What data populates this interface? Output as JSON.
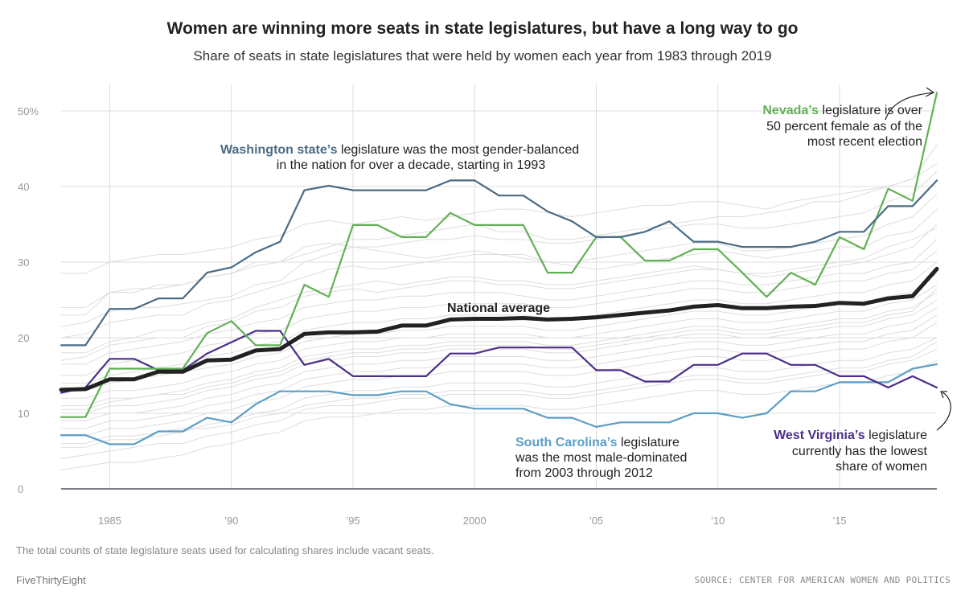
{
  "title": "Women are winning more seats in state legislatures, but have a long way to go",
  "subtitle": "Share of seats in state legislatures that were held by women each year from 1983 through 2019",
  "footnote": "The total counts of state legislature seats used for calculating shares include vacant seats.",
  "brand": "FiveThirtyEight",
  "source": "SOURCE: CENTER FOR AMERICAN WOMEN AND POLITICS",
  "colors": {
    "national": "#222222",
    "washington": "#4a6b85",
    "nevada": "#62b055",
    "west_virginia": "#4b2e8a",
    "south_carolina": "#5c9ec6",
    "background_lines": "#dddddd",
    "grid": "#dddddd",
    "zero_line": "#333344"
  },
  "annotations": {
    "washington": {
      "bold": "Washington state’s",
      "line1": " legislature was the most gender-balanced",
      "line2": "in the nation for over a decade, starting in 1993"
    },
    "nevada": {
      "bold": "Nevada’s",
      "line1": " legislature is over",
      "line2": "50 percent female as of the",
      "line3": "most recent election"
    },
    "national": {
      "label": "National average"
    },
    "south_carolina": {
      "bold": "South Carolina’s",
      "line1": " legislature",
      "line2": "was the most male-dominated",
      "line3": "from 2003 through 2012"
    },
    "west_virginia": {
      "bold": "West Virginia’s",
      "line1": " legislature",
      "line2": "currently has the lowest",
      "line3": "share of women"
    }
  },
  "chart_data": {
    "type": "line",
    "title": "Women are winning more seats in state legislatures, but have a long way to go",
    "xlabel": "",
    "ylabel": "",
    "xlim": [
      1983,
      2019
    ],
    "ylim": [
      0,
      52
    ],
    "x_ticks": [
      1985,
      1990,
      1995,
      2000,
      2005,
      2010,
      2015
    ],
    "x_tick_labels": [
      "1985",
      "’90",
      "’95",
      "2000",
      "’05",
      "’10",
      "’15"
    ],
    "y_ticks": [
      0,
      10,
      20,
      30,
      40,
      50
    ],
    "y_tick_labels": [
      "0",
      "10",
      "20",
      "30",
      "40",
      "50%"
    ],
    "x": [
      1983,
      1984,
      1985,
      1986,
      1987,
      1988,
      1989,
      1990,
      1991,
      1992,
      1993,
      1994,
      1995,
      1996,
      1997,
      1998,
      1999,
      2000,
      2001,
      2002,
      2003,
      2004,
      2005,
      2006,
      2007,
      2008,
      2009,
      2010,
      2011,
      2012,
      2013,
      2014,
      2015,
      2016,
      2017,
      2018,
      2019
    ],
    "series": [
      {
        "name": "National average",
        "key": "national",
        "values": [
          13.1,
          13.2,
          14.5,
          14.5,
          15.5,
          15.5,
          17.0,
          17.1,
          18.3,
          18.5,
          20.5,
          20.7,
          20.7,
          20.8,
          21.6,
          21.6,
          22.4,
          22.5,
          22.5,
          22.6,
          22.4,
          22.5,
          22.7,
          23.0,
          23.3,
          23.6,
          24.1,
          24.3,
          23.9,
          23.9,
          24.1,
          24.2,
          24.6,
          24.5,
          25.2,
          25.5,
          29.1
        ]
      },
      {
        "name": "Washington",
        "key": "washington",
        "values": [
          19.0,
          19.0,
          23.8,
          23.8,
          25.2,
          25.2,
          28.6,
          29.3,
          31.3,
          32.7,
          39.5,
          40.1,
          39.5,
          39.5,
          39.5,
          39.5,
          40.8,
          40.8,
          38.8,
          38.8,
          36.7,
          35.4,
          33.3,
          33.3,
          34.0,
          35.4,
          32.7,
          32.7,
          32.0,
          32.0,
          32.0,
          32.7,
          34.0,
          34.0,
          37.4,
          37.4,
          40.8
        ]
      },
      {
        "name": "Nevada",
        "key": "nevada",
        "values": [
          9.5,
          9.5,
          15.9,
          15.9,
          15.9,
          15.9,
          20.6,
          22.2,
          19.0,
          19.0,
          27.0,
          25.4,
          34.9,
          34.9,
          33.3,
          33.3,
          36.5,
          34.9,
          34.9,
          34.9,
          28.6,
          28.6,
          33.3,
          33.3,
          30.2,
          30.2,
          31.7,
          31.7,
          28.6,
          25.4,
          28.6,
          27.0,
          33.3,
          31.7,
          39.7,
          38.1,
          52.4
        ]
      },
      {
        "name": "West Virginia",
        "key": "west_virginia",
        "values": [
          12.7,
          13.4,
          17.2,
          17.2,
          15.7,
          15.7,
          17.9,
          19.4,
          20.9,
          20.9,
          16.4,
          17.2,
          14.9,
          14.9,
          14.9,
          14.9,
          17.9,
          17.9,
          18.7,
          18.7,
          18.7,
          18.7,
          15.7,
          15.7,
          14.2,
          14.2,
          16.4,
          16.4,
          17.9,
          17.9,
          16.4,
          16.4,
          14.9,
          14.9,
          13.4,
          14.9,
          13.4
        ]
      },
      {
        "name": "South Carolina",
        "key": "south_carolina",
        "values": [
          7.1,
          7.1,
          5.9,
          5.9,
          7.6,
          7.6,
          9.4,
          8.8,
          11.2,
          12.9,
          12.9,
          12.9,
          12.4,
          12.4,
          12.9,
          12.9,
          11.2,
          10.6,
          10.6,
          10.6,
          9.4,
          9.4,
          8.2,
          8.8,
          8.8,
          8.8,
          10.0,
          10.0,
          9.4,
          10.0,
          12.9,
          12.9,
          14.1,
          14.1,
          14.1,
          15.9,
          16.5
        ]
      }
    ],
    "background_states": [
      [
        28.5,
        28.5,
        30.0,
        30.5,
        31.0,
        31.0,
        31.5,
        32.0,
        33.0,
        33.5,
        35.0,
        35.5,
        35.0,
        35.5,
        36.0,
        35.5,
        36.0,
        36.5,
        37.0,
        37.0,
        36.5,
        36.0,
        36.5,
        37.0,
        37.5,
        37.5,
        38.0,
        38.0,
        37.5,
        37.0,
        38.0,
        38.5,
        39.0,
        39.5,
        40.0,
        41.0,
        43.0
      ],
      [
        23.0,
        23.0,
        26.0,
        26.5,
        26.5,
        27.0,
        28.0,
        28.5,
        30.0,
        30.0,
        31.0,
        32.0,
        33.0,
        33.0,
        33.5,
        34.0,
        34.5,
        35.0,
        34.0,
        34.0,
        33.0,
        33.0,
        33.5,
        34.0,
        34.5,
        35.0,
        35.5,
        36.0,
        36.0,
        36.5,
        37.0,
        38.0,
        38.0,
        39.0,
        40.0,
        41.0,
        45.5
      ],
      [
        24.0,
        24.0,
        26.0,
        26.0,
        27.0,
        27.0,
        28.0,
        28.5,
        29.5,
        30.0,
        32.0,
        32.5,
        32.0,
        31.5,
        31.0,
        30.5,
        31.0,
        31.5,
        31.0,
        31.0,
        30.0,
        30.0,
        30.5,
        31.0,
        31.5,
        32.0,
        32.5,
        32.5,
        31.5,
        31.5,
        32.0,
        32.5,
        33.0,
        33.5,
        35.0,
        36.0,
        39.0
      ],
      [
        20.0,
        20.5,
        22.0,
        22.5,
        23.0,
        23.0,
        24.5,
        25.0,
        26.0,
        27.0,
        28.0,
        29.0,
        29.5,
        29.0,
        29.5,
        30.0,
        30.5,
        31.0,
        31.0,
        30.5,
        30.0,
        29.5,
        29.0,
        29.5,
        30.0,
        30.5,
        31.0,
        31.5,
        31.0,
        30.5,
        31.0,
        31.5,
        32.0,
        32.0,
        33.5,
        34.0,
        37.0
      ],
      [
        18.0,
        18.0,
        19.5,
        20.0,
        21.0,
        21.0,
        22.0,
        22.5,
        24.0,
        25.0,
        26.0,
        26.5,
        27.0,
        27.5,
        27.0,
        27.5,
        28.0,
        28.0,
        27.5,
        27.5,
        27.0,
        27.0,
        27.5,
        28.0,
        28.5,
        29.0,
        29.5,
        29.0,
        28.5,
        28.0,
        28.5,
        29.0,
        29.5,
        30.0,
        31.0,
        32.0,
        35.0
      ],
      [
        16.5,
        16.5,
        18.0,
        18.5,
        19.0,
        19.5,
        20.5,
        21.0,
        22.0,
        22.5,
        24.0,
        24.5,
        25.0,
        25.0,
        25.5,
        25.5,
        26.0,
        26.0,
        26.0,
        25.5,
        25.0,
        25.0,
        25.5,
        26.0,
        26.5,
        27.0,
        27.5,
        27.5,
        27.0,
        27.0,
        27.5,
        28.0,
        28.5,
        28.5,
        29.5,
        30.0,
        33.0
      ],
      [
        15.0,
        15.0,
        16.5,
        17.0,
        17.5,
        18.0,
        19.0,
        19.5,
        20.5,
        21.0,
        22.5,
        23.0,
        23.5,
        23.5,
        24.0,
        24.0,
        24.5,
        24.5,
        24.5,
        24.5,
        24.0,
        24.0,
        24.5,
        25.0,
        25.5,
        26.0,
        26.5,
        26.5,
        26.0,
        26.0,
        26.5,
        27.0,
        27.5,
        27.5,
        28.5,
        29.0,
        31.5
      ],
      [
        14.0,
        14.0,
        15.0,
        15.5,
        16.0,
        16.5,
        17.5,
        18.0,
        19.0,
        19.5,
        21.0,
        21.5,
        22.0,
        22.0,
        22.5,
        22.5,
        23.0,
        23.0,
        23.0,
        23.0,
        22.5,
        22.5,
        23.0,
        23.5,
        24.0,
        24.5,
        25.0,
        25.0,
        24.5,
        24.5,
        25.0,
        25.5,
        26.0,
        26.0,
        27.0,
        27.5,
        30.0
      ],
      [
        13.0,
        13.0,
        14.0,
        14.5,
        15.0,
        15.5,
        16.0,
        16.5,
        17.5,
        18.0,
        19.5,
        20.0,
        20.5,
        20.5,
        21.0,
        21.0,
        21.5,
        21.5,
        21.5,
        21.5,
        21.0,
        21.0,
        21.5,
        22.0,
        22.5,
        23.0,
        23.5,
        23.5,
        23.0,
        23.0,
        23.5,
        24.0,
        24.5,
        24.5,
        25.5,
        26.0,
        28.5
      ],
      [
        12.0,
        12.0,
        13.0,
        13.0,
        13.5,
        14.0,
        15.0,
        15.5,
        16.5,
        17.0,
        18.5,
        19.0,
        19.5,
        19.5,
        20.0,
        20.0,
        20.5,
        20.5,
        20.5,
        20.5,
        20.0,
        20.0,
        20.5,
        21.0,
        21.5,
        22.0,
        22.5,
        22.5,
        22.0,
        22.0,
        22.5,
        23.0,
        23.5,
        23.5,
        24.5,
        25.0,
        27.0
      ],
      [
        11.0,
        11.0,
        12.0,
        12.0,
        12.5,
        13.0,
        14.0,
        14.5,
        15.5,
        16.0,
        17.5,
        18.0,
        18.5,
        18.5,
        19.0,
        19.0,
        19.5,
        19.5,
        19.5,
        19.5,
        19.0,
        19.0,
        19.5,
        20.0,
        20.5,
        21.0,
        21.5,
        21.5,
        21.0,
        21.0,
        21.5,
        22.0,
        22.5,
        22.5,
        23.5,
        24.0,
        26.0
      ],
      [
        10.0,
        10.0,
        11.0,
        11.0,
        11.5,
        12.0,
        13.0,
        13.5,
        14.5,
        15.0,
        16.5,
        17.0,
        17.5,
        17.5,
        18.0,
        18.0,
        18.5,
        18.5,
        18.5,
        18.5,
        18.0,
        18.0,
        18.5,
        19.0,
        19.5,
        20.0,
        20.5,
        20.5,
        20.0,
        20.0,
        20.5,
        21.0,
        21.5,
        21.5,
        22.5,
        23.0,
        25.0
      ],
      [
        9.0,
        9.0,
        10.0,
        10.0,
        10.5,
        11.0,
        12.0,
        12.5,
        13.5,
        14.0,
        15.5,
        16.0,
        16.5,
        16.5,
        17.0,
        17.0,
        17.5,
        17.5,
        17.5,
        17.5,
        17.0,
        17.0,
        17.5,
        18.0,
        18.5,
        19.0,
        19.5,
        19.5,
        19.0,
        19.0,
        19.5,
        20.0,
        20.5,
        20.5,
        21.5,
        22.0,
        24.0
      ],
      [
        8.0,
        8.0,
        9.0,
        9.0,
        9.5,
        10.0,
        11.0,
        11.5,
        12.5,
        13.0,
        14.5,
        15.0,
        15.5,
        15.5,
        16.0,
        16.0,
        16.5,
        16.5,
        16.5,
        16.5,
        16.0,
        16.0,
        16.5,
        17.0,
        17.5,
        18.0,
        18.5,
        18.5,
        18.0,
        18.0,
        18.5,
        19.0,
        19.5,
        19.5,
        20.5,
        21.0,
        23.0
      ],
      [
        7.0,
        7.0,
        8.0,
        8.0,
        8.5,
        9.0,
        10.0,
        10.5,
        11.5,
        12.0,
        13.5,
        14.0,
        14.5,
        14.5,
        15.0,
        15.0,
        15.5,
        15.5,
        15.5,
        15.5,
        15.0,
        15.0,
        15.5,
        16.0,
        16.5,
        17.0,
        17.5,
        17.5,
        17.0,
        17.0,
        17.5,
        18.0,
        18.5,
        18.5,
        19.5,
        20.0,
        22.0
      ],
      [
        5.5,
        5.5,
        6.5,
        6.5,
        7.0,
        7.5,
        8.5,
        9.0,
        10.0,
        10.5,
        12.0,
        12.5,
        13.0,
        13.0,
        13.5,
        13.5,
        14.0,
        14.0,
        14.0,
        14.0,
        13.5,
        13.5,
        14.0,
        14.5,
        15.0,
        15.5,
        16.0,
        16.0,
        15.5,
        15.5,
        16.0,
        16.5,
        17.0,
        17.0,
        18.0,
        18.5,
        20.0
      ],
      [
        4.0,
        4.5,
        5.0,
        5.5,
        6.0,
        6.0,
        7.0,
        7.5,
        8.5,
        9.0,
        10.5,
        11.0,
        11.0,
        11.5,
        12.0,
        12.0,
        12.5,
        12.5,
        12.5,
        12.5,
        12.0,
        12.0,
        12.5,
        13.0,
        13.5,
        14.0,
        14.5,
        14.5,
        14.0,
        14.0,
        14.5,
        15.0,
        15.5,
        15.5,
        16.5,
        17.0,
        18.5
      ],
      [
        2.5,
        3.0,
        3.5,
        3.5,
        4.0,
        4.5,
        5.5,
        6.0,
        7.0,
        7.5,
        9.0,
        9.5,
        9.5,
        10.0,
        10.5,
        10.5,
        11.0,
        11.0,
        11.0,
        11.0,
        10.5,
        10.5,
        11.0,
        11.5,
        12.0,
        12.5,
        13.0,
        13.0,
        12.5,
        12.5,
        13.0,
        13.5,
        14.0,
        14.0,
        15.0,
        15.5,
        17.0
      ],
      [
        21.5,
        22.0,
        23.5,
        24.0,
        24.0,
        24.5,
        25.0,
        25.5,
        27.0,
        27.5,
        30.0,
        31.0,
        32.0,
        32.0,
        32.5,
        33.0,
        33.0,
        33.5,
        33.0,
        33.0,
        32.5,
        32.5,
        33.0,
        33.5,
        34.0,
        34.5,
        35.0,
        35.0,
        34.5,
        34.5,
        35.0,
        35.5,
        36.0,
        36.5,
        38.0,
        39.0,
        42.0
      ],
      [
        17.0,
        17.5,
        19.0,
        19.5,
        20.0,
        20.0,
        21.5,
        22.0,
        23.5,
        24.0,
        25.5,
        26.0,
        26.5,
        26.0,
        26.5,
        27.0,
        27.5,
        27.5,
        27.0,
        27.0,
        26.5,
        26.5,
        27.0,
        27.5,
        28.0,
        28.5,
        29.0,
        29.0,
        28.5,
        28.5,
        29.0,
        29.5,
        30.0,
        30.5,
        32.0,
        33.0,
        34.5
      ],
      [
        6.0,
        6.0,
        7.0,
        7.0,
        7.5,
        8.0,
        8.0,
        8.5,
        9.5,
        10.0,
        11.0,
        11.5,
        12.0,
        12.0,
        12.5,
        12.5,
        13.0,
        13.0,
        13.0,
        13.0,
        12.5,
        12.5,
        13.0,
        13.5,
        14.0,
        14.5,
        15.0,
        15.0,
        14.5,
        14.5,
        15.0,
        15.5,
        16.0,
        16.0,
        17.0,
        17.5,
        19.5
      ],
      [
        10.5,
        10.5,
        11.5,
        12.0,
        12.5,
        12.5,
        13.5,
        14.0,
        15.0,
        15.5,
        17.0,
        17.5,
        18.0,
        18.0,
        18.5,
        18.5,
        19.0,
        19.0,
        19.0,
        19.0,
        18.5,
        18.5,
        19.0,
        19.5,
        20.0,
        20.5,
        21.0,
        21.0,
        20.5,
        20.5,
        21.0,
        21.5,
        22.0,
        22.0,
        23.0,
        23.5,
        26.5
      ]
    ]
  }
}
